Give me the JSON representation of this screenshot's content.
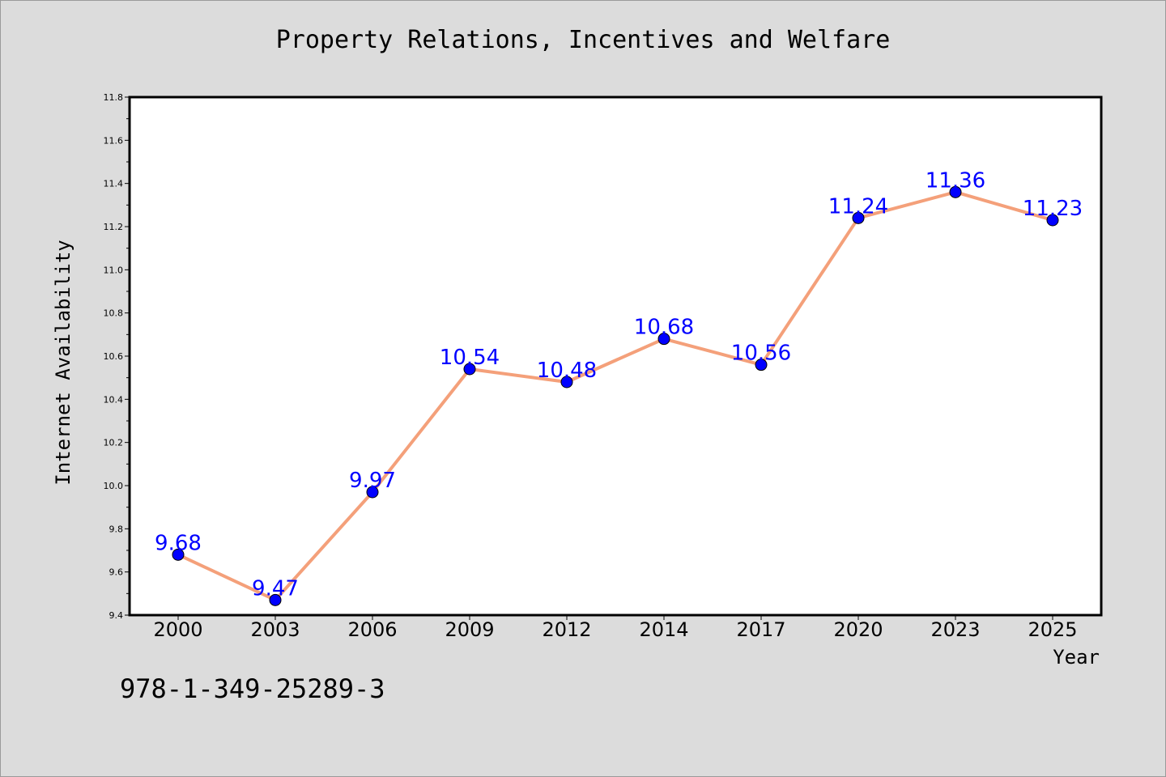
{
  "chart_data": {
    "type": "line",
    "title": "Property Relations, Incentives and Welfare",
    "xlabel": "Year",
    "ylabel": "Internet Availability",
    "categories": [
      "2000",
      "2003",
      "2006",
      "2009",
      "2012",
      "2014",
      "2017",
      "2020",
      "2023",
      "2025"
    ],
    "series": [
      {
        "values": [
          9.68,
          9.47,
          9.97,
          10.54,
          10.48,
          10.68,
          10.56,
          11.24,
          11.36,
          11.23
        ]
      }
    ],
    "data_labels": [
      "9.68",
      "9.47",
      "9.97",
      "10.54",
      "10.48",
      "10.68",
      "10.56",
      "11.24",
      "11.36",
      "11.23"
    ],
    "ylim": [
      9.4,
      11.8
    ],
    "yticks": [
      "9.4",
      "9.6",
      "9.8",
      "10.0",
      "10.2",
      "10.4",
      "10.6",
      "10.8",
      "11.0",
      "11.2",
      "11.4",
      "11.6",
      "11.8"
    ],
    "grid": false,
    "legend": "none",
    "colors": {
      "line": "#f4a07a",
      "marker": "#0000ff",
      "label": "#0000ff",
      "plot_background": "#ffffff",
      "figure_background": "#dcdcdc"
    }
  },
  "footer": {
    "isbn": "978-1-349-25289-3"
  }
}
